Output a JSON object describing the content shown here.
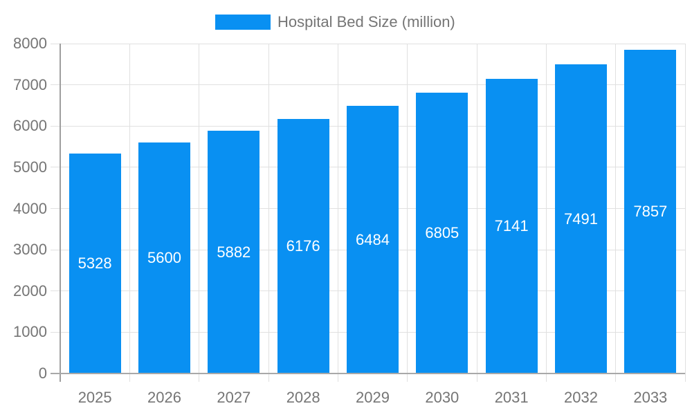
{
  "legend": {
    "label": "Hospital Bed Size (million)"
  },
  "chart_data": {
    "type": "bar",
    "title": "",
    "categories": [
      "2025",
      "2026",
      "2027",
      "2028",
      "2029",
      "2030",
      "2031",
      "2032",
      "2033"
    ],
    "series": [
      {
        "name": "Hospital Bed Size (million)",
        "values": [
          5328,
          5600,
          5882,
          6176,
          6484,
          6805,
          7141,
          7491,
          7857
        ]
      }
    ],
    "xlabel": "",
    "ylabel": "",
    "ylim": [
      0,
      8000
    ],
    "ytick_step": 1000,
    "ytick_labels": [
      "0",
      "1000",
      "2000",
      "3000",
      "4000",
      "5000",
      "6000",
      "7000",
      "8000"
    ],
    "grid": true,
    "legend_position": "top",
    "bar_color": "#0990f2",
    "bar_label_color": "#ffffff",
    "axis_text_color": "#757575",
    "grid_color": "#e0e0e0",
    "axis_line_color": "#9e9e9e"
  }
}
